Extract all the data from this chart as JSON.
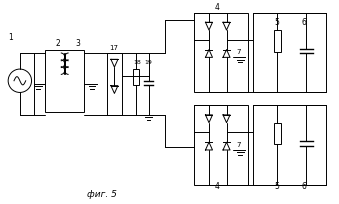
{
  "title": "фиг. 5",
  "bg": "#ffffff",
  "lc": "#000000",
  "fw": 3.39,
  "fh": 2.05,
  "dpi": 100
}
